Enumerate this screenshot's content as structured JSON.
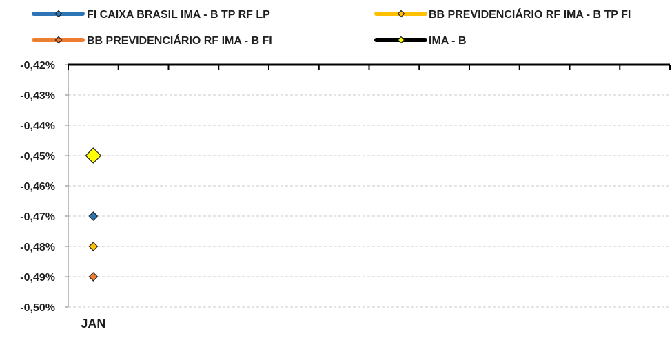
{
  "chart_data": {
    "type": "scatter",
    "title": "",
    "xlabel": "",
    "ylabel": "",
    "categories": [
      "JAN",
      "",
      "",
      "",
      "",
      "",
      "",
      "",
      "",
      "",
      "",
      ""
    ],
    "y_tick_labels": [
      "-0,42%",
      "-0,43%",
      "-0,44%",
      "-0,45%",
      "-0,46%",
      "-0,47%",
      "-0,48%",
      "-0,49%",
      "-0,50%"
    ],
    "ylim": [
      -0.5,
      -0.42
    ],
    "y_reversed": true,
    "grid": true,
    "legend_position": "top",
    "series": [
      {
        "name": "FI CAIXA BRASIL IMA - B TP RF LP",
        "color": "#2e75b6",
        "values": [
          -0.47
        ]
      },
      {
        "name": "BB PREVIDENCIÁRIO RF IMA - B TP FI",
        "color": "#ffc000",
        "values": [
          -0.48
        ]
      },
      {
        "name": "BB PREVIDENCIÁRIO RF IMA - B FI",
        "color": "#ed7d31",
        "values": [
          -0.49
        ]
      },
      {
        "name": "IMA - B",
        "color": "#000000",
        "values": [
          -0.45
        ]
      }
    ],
    "markers": {
      "FI CAIXA BRASIL IMA - B TP RF LP": {
        "fill": "#2e75b6",
        "size": "small"
      },
      "BB PREVIDENCIÁRIO RF IMA - B TP FI": {
        "fill": "#ffc000",
        "size": "small"
      },
      "BB PREVIDENCIÁRIO RF IMA - B FI": {
        "fill": "#ed7d31",
        "size": "small"
      },
      "IMA - B": {
        "fill": "#ffff00",
        "size": "large"
      }
    }
  }
}
